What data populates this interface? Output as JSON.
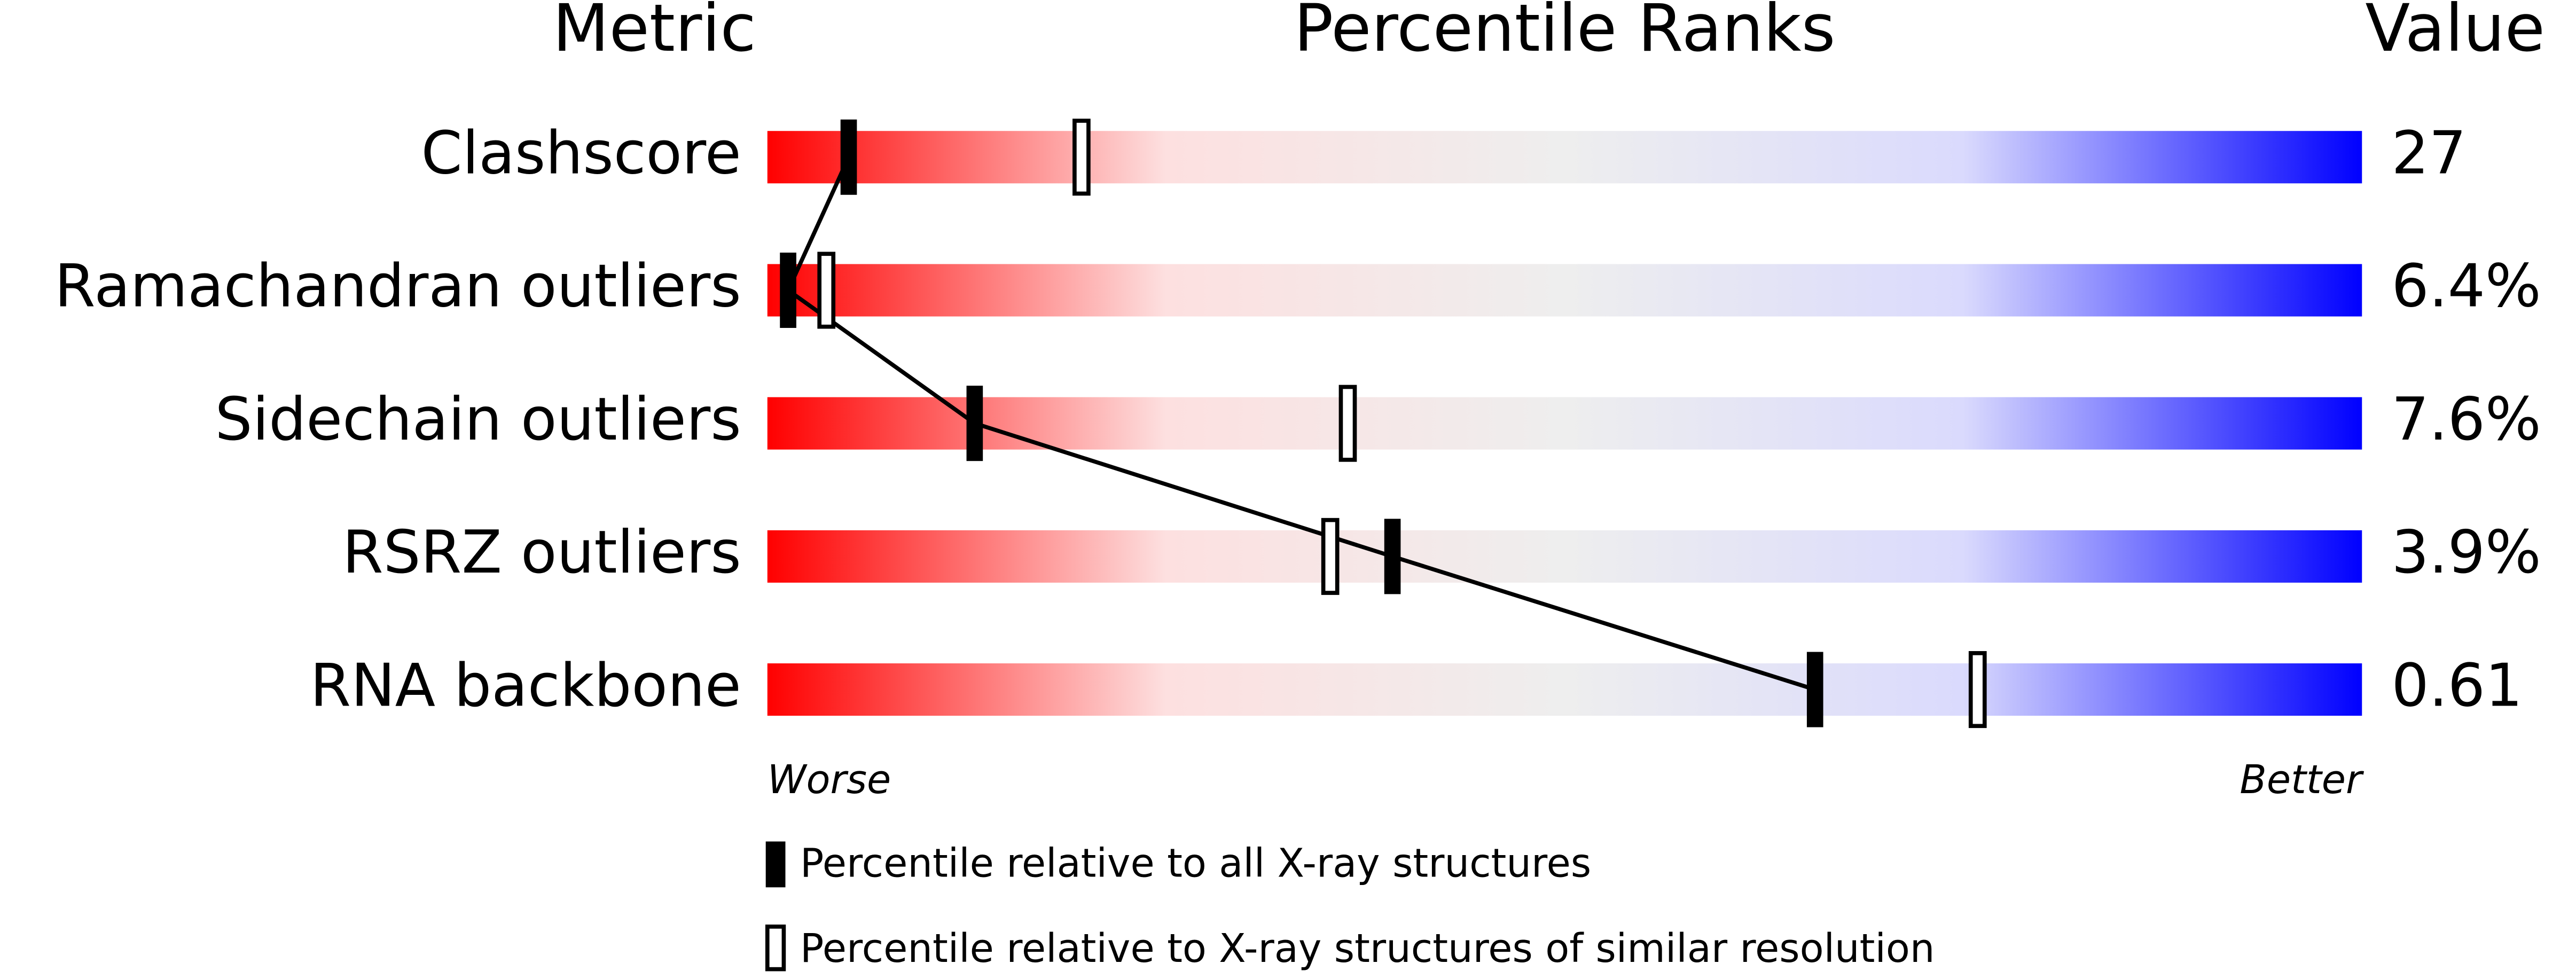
{
  "chart_data": {
    "type": "percentile",
    "headers": [
      "Metric",
      "Percentile Ranks",
      "Value"
    ],
    "categories": [
      "Clashscore",
      "Ramachandran outliers",
      "Sidechain outliers",
      "RSRZ outliers",
      "RNA backbone"
    ],
    "values": [
      27,
      6.4,
      7.6,
      3.9,
      0.61
    ],
    "value_labels": [
      "27",
      "6.4%",
      "7.6%",
      "3.9%",
      "0.61"
    ],
    "series": [
      {
        "name": "Percentile relative to all X-ray structures",
        "color": "#000000",
        "filled": true,
        "values": [
          5.1,
          1.3,
          13.0,
          39.2,
          65.7
        ]
      },
      {
        "name": "Percentile relative to X-ray structures of similar resolution",
        "color": "#000000",
        "filled": false,
        "values": [
          19.7,
          3.7,
          36.4,
          35.3,
          75.9
        ]
      }
    ],
    "xlim": [
      0,
      100
    ],
    "worse_label": "Worse",
    "better_label": "Better",
    "gradient": [
      "#ff0000",
      "#fde0e0",
      "#eeeeee",
      "#dadafd",
      "#0000ff"
    ]
  }
}
